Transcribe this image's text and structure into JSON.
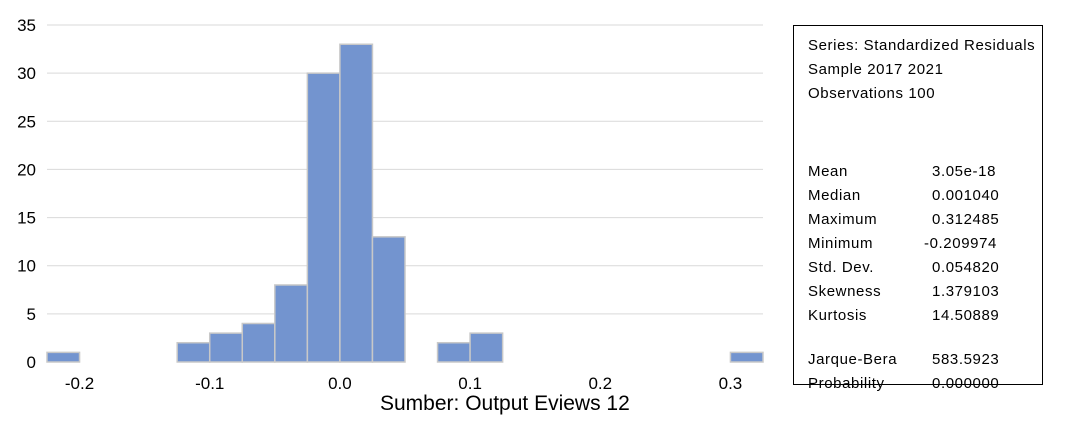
{
  "chart_data": {
    "type": "bar",
    "subtype": "histogram",
    "bin_width": 0.025,
    "bins": [
      {
        "start": -0.225,
        "end": -0.2,
        "count": 1
      },
      {
        "start": -0.2,
        "end": -0.175,
        "count": 0
      },
      {
        "start": -0.175,
        "end": -0.15,
        "count": 0
      },
      {
        "start": -0.15,
        "end": -0.125,
        "count": 0
      },
      {
        "start": -0.125,
        "end": -0.1,
        "count": 2
      },
      {
        "start": -0.1,
        "end": -0.075,
        "count": 3
      },
      {
        "start": -0.075,
        "end": -0.05,
        "count": 4
      },
      {
        "start": -0.05,
        "end": -0.025,
        "count": 8
      },
      {
        "start": -0.025,
        "end": 0.0,
        "count": 30
      },
      {
        "start": 0.0,
        "end": 0.025,
        "count": 33
      },
      {
        "start": 0.025,
        "end": 0.05,
        "count": 13
      },
      {
        "start": 0.05,
        "end": 0.075,
        "count": 0
      },
      {
        "start": 0.075,
        "end": 0.1,
        "count": 2
      },
      {
        "start": 0.1,
        "end": 0.125,
        "count": 3
      },
      {
        "start": 0.125,
        "end": 0.15,
        "count": 0
      },
      {
        "start": 0.15,
        "end": 0.175,
        "count": 0
      },
      {
        "start": 0.175,
        "end": 0.2,
        "count": 0
      },
      {
        "start": 0.2,
        "end": 0.225,
        "count": 0
      },
      {
        "start": 0.225,
        "end": 0.25,
        "count": 0
      },
      {
        "start": 0.25,
        "end": 0.275,
        "count": 0
      },
      {
        "start": 0.275,
        "end": 0.3,
        "count": 0
      },
      {
        "start": 0.3,
        "end": 0.325,
        "count": 1
      }
    ],
    "xlim": [
      -0.225,
      0.325
    ],
    "ylim": [
      0,
      35
    ],
    "x_ticks": [
      -0.2,
      -0.1,
      0.0,
      0.1,
      0.2,
      0.3
    ],
    "x_tick_labels": [
      "-0.2",
      "-0.1",
      "0.0",
      "0.1",
      "0.2",
      "0.3"
    ],
    "y_ticks": [
      0,
      5,
      10,
      15,
      20,
      25,
      30,
      35
    ],
    "y_tick_labels": [
      "0",
      "5",
      "10",
      "15",
      "20",
      "25",
      "30",
      "35"
    ],
    "grid": true,
    "bar_color": "#7394CF",
    "bar_edge_color": "#C8C8C8",
    "grid_color": "#D9D9D9",
    "title": "",
    "xlabel": "",
    "ylabel": ""
  },
  "caption": "Sumber: Output Eviews 12",
  "stats": {
    "header": [
      "Series: Standardized Residuals",
      "Sample 2017 2021",
      "Observations 100"
    ],
    "rows": [
      {
        "label": "Mean",
        "value": "3.05e-18"
      },
      {
        "label": "Median",
        "value": "0.001040"
      },
      {
        "label": "Maximum",
        "value": "0.312485"
      },
      {
        "label": "Minimum",
        "value": "-0.209974"
      },
      {
        "label": "Std. Dev.",
        "value": "0.054820"
      },
      {
        "label": "Skewness",
        "value": "1.379103"
      },
      {
        "label": "Kurtosis",
        "value": "14.50889"
      }
    ],
    "test_rows": [
      {
        "label": "Jarque-Bera",
        "value": "583.5923"
      },
      {
        "label": "Probability",
        "value": "0.000000"
      }
    ]
  }
}
